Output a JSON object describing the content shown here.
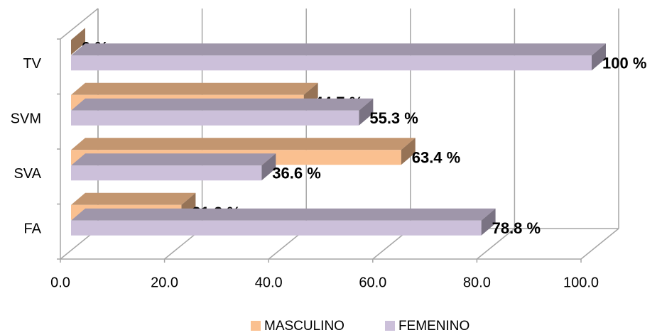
{
  "chart_data": {
    "type": "bar",
    "orientation": "horizontal",
    "categories": [
      "FA",
      "SVA",
      "SVM",
      "TV"
    ],
    "series": [
      {
        "name": "MASCULINO",
        "color": "#fac090",
        "values": [
          21.2,
          63.4,
          44.7,
          0
        ],
        "value_labels": [
          "21.2 %",
          "63.4 %",
          "44.7 %",
          "0 %"
        ]
      },
      {
        "name": "FEMENINO",
        "color": "#ccc0da",
        "values": [
          78.8,
          36.6,
          55.3,
          100
        ],
        "value_labels": [
          "78.8 %",
          "36.6 %",
          "55.3 %",
          "100 %"
        ]
      }
    ],
    "xlim": [
      0,
      100
    ],
    "xticks": [
      {
        "value": 0,
        "label": "0.0"
      },
      {
        "value": 20,
        "label": "20.0"
      },
      {
        "value": 40,
        "label": "40.0"
      },
      {
        "value": 60,
        "label": "60.0"
      },
      {
        "value": 80,
        "label": "80.0"
      },
      {
        "value": 100,
        "label": "100.0"
      }
    ],
    "grid": true,
    "legend": "bottom"
  }
}
